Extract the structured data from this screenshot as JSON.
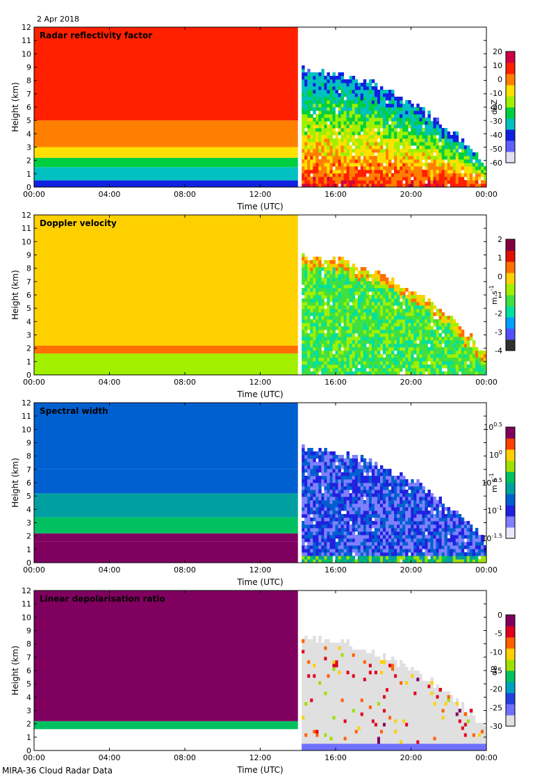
{
  "figure": {
    "date": "2 Apr 2018",
    "footer": "MIRA-36 Cloud Radar Data"
  },
  "chart_data": [
    {
      "type": "heatmap",
      "title": "Radar reflectivity factor",
      "xlabel": "Time (UTC)",
      "ylabel": "Height (km)",
      "xticks": [
        "00:00",
        "04:00",
        "08:00",
        "12:00",
        "16:00",
        "20:00",
        "00:00"
      ],
      "xlim": [
        0,
        24
      ],
      "ylim": [
        0,
        12
      ],
      "yticks": [
        0,
        1,
        2,
        3,
        4,
        5,
        6,
        7,
        8,
        9,
        10,
        11,
        12
      ],
      "colorbar": {
        "label": "dBZ",
        "ticks": [
          "20",
          "10",
          "0",
          "-10",
          "-20",
          "-30",
          "-40",
          "-50",
          "-60"
        ],
        "range": [
          -60,
          20
        ],
        "scale": "linear"
      },
      "palette": [
        "#e0e0f0",
        "#6060ff",
        "#1020e0",
        "#00c0c0",
        "#00d040",
        "#a0f000",
        "#ffe000",
        "#ff8000",
        "#ff2000",
        "#d00040"
      ],
      "cloud_top_km": 9.2,
      "notes": {
        "gap_hours": [
          14.0,
          14.2
        ]
      }
    },
    {
      "type": "heatmap",
      "title": "Doppler velocity",
      "xlabel": "Time (UTC)",
      "ylabel": "Height (km)",
      "xticks": [
        "00:00",
        "04:00",
        "08:00",
        "12:00",
        "16:00",
        "20:00",
        "00:00"
      ],
      "xlim": [
        0,
        24
      ],
      "ylim": [
        0,
        12
      ],
      "yticks": [
        0,
        1,
        2,
        3,
        4,
        5,
        6,
        7,
        8,
        9,
        10,
        11,
        12
      ],
      "colorbar": {
        "label": "m s",
        "label_sup": "-1",
        "ticks": [
          "2",
          "1",
          "0",
          "-1",
          "-2",
          "-3",
          "-4"
        ],
        "range": [
          -4,
          2
        ],
        "scale": "linear"
      },
      "palette": [
        "#303030",
        "#5050ff",
        "#00a0ff",
        "#00e0a0",
        "#40e040",
        "#a0f000",
        "#ffd000",
        "#ff7000",
        "#e01000",
        "#800040"
      ],
      "cloud_top_km": 9.2
    },
    {
      "type": "heatmap",
      "title": "Spectral width",
      "xlabel": "Time (UTC)",
      "ylabel": "Height (km)",
      "xticks": [
        "00:00",
        "04:00",
        "08:00",
        "12:00",
        "16:00",
        "20:00",
        "00:00"
      ],
      "xlim": [
        0,
        24
      ],
      "ylim": [
        0,
        12
      ],
      "yticks": [
        0,
        1,
        2,
        3,
        4,
        5,
        6,
        7,
        8,
        9,
        10,
        11,
        12
      ],
      "colorbar": {
        "label": "m s",
        "label_sup": "-1",
        "ticks": [
          "10^0.5",
          "10^0",
          "10^-0.5",
          "10^-1",
          "10^-1.5"
        ],
        "range": [
          -1.5,
          0.5
        ],
        "scale": "log10"
      },
      "palette": [
        "#e8e8f8",
        "#8080ff",
        "#2020e0",
        "#0060d0",
        "#00a0a0",
        "#00c060",
        "#a0e000",
        "#ffd000",
        "#ff4000",
        "#800060"
      ],
      "cloud_top_km": 9.0
    },
    {
      "type": "heatmap",
      "title": "Linear depolarisation ratio",
      "xlabel": "Time (UTC)",
      "ylabel": "Height (km)",
      "xticks": [
        "00:00",
        "04:00",
        "08:00",
        "12:00",
        "16:00",
        "20:00",
        "00:00"
      ],
      "xlim": [
        0,
        24
      ],
      "ylim": [
        0,
        12
      ],
      "yticks": [
        0,
        1,
        2,
        3,
        4,
        5,
        6,
        7,
        8,
        9,
        10,
        11,
        12
      ],
      "colorbar": {
        "label": "dB",
        "ticks": [
          "0",
          "-5",
          "-10",
          "-15",
          "-20",
          "-25",
          "-30"
        ],
        "range": [
          -30,
          0
        ],
        "scale": "linear"
      },
      "palette": [
        "#e0e0e0",
        "#7070ff",
        "#2040e0",
        "#00a0c0",
        "#00c060",
        "#a0e000",
        "#ffd000",
        "#ff6000",
        "#e00020",
        "#800060"
      ],
      "cloud_top_km": 8.8
    }
  ]
}
